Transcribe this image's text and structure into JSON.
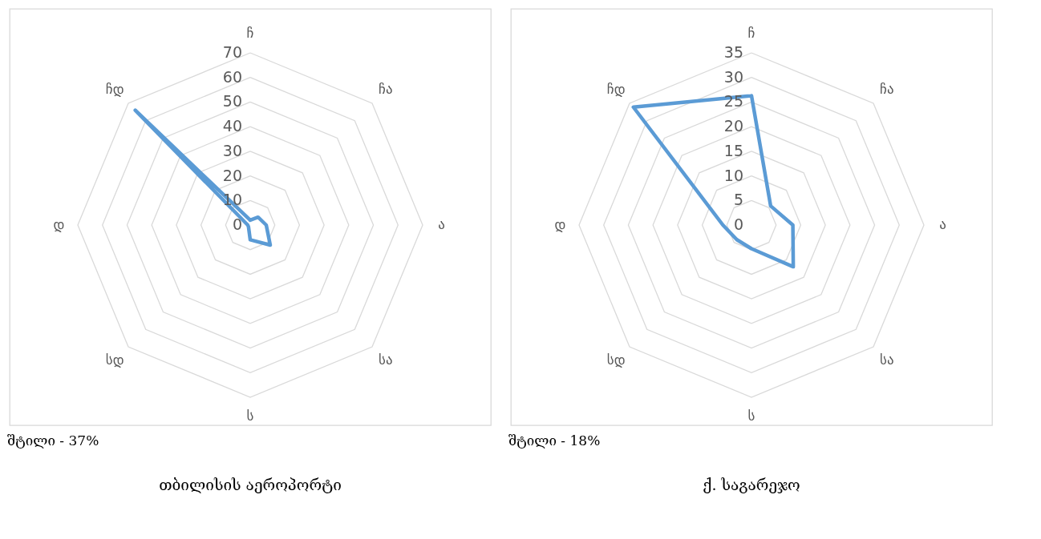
{
  "chart_data": [
    {
      "type": "radar",
      "title": "თბილისის აეროპორტი",
      "annotations": [
        "შტილი - 37%"
      ],
      "categories": [
        "ჩ",
        "ჩა",
        "ა",
        "სა",
        "ს",
        "სდ",
        "დ",
        "ჩდ"
      ],
      "series": [
        {
          "color": "#5b9bd5",
          "values": [
            2,
            4.5,
            6.5,
            11.5,
            6,
            1,
            1,
            66
          ]
        }
      ],
      "ylim": [
        0,
        70
      ],
      "yticks": [
        0,
        10,
        20,
        30,
        40,
        50,
        60,
        70
      ],
      "grid": true
    },
    {
      "type": "radar",
      "title": "ქ. საგარეჯო",
      "annotations": [
        "შტილი - 18%"
      ],
      "categories": [
        "ჩ",
        "ჩა",
        "ა",
        "სა",
        "ს",
        "სდ",
        "დ",
        "ჩდ"
      ],
      "series": [
        {
          "color": "#5b9bd5",
          "values": [
            26.3,
            5.5,
            8.4,
            12,
            4.8,
            4.2,
            5.8,
            33.9
          ]
        }
      ],
      "ylim": [
        0,
        35
      ],
      "yticks": [
        0,
        5,
        10,
        15,
        20,
        25,
        30,
        35
      ],
      "grid": true
    }
  ]
}
